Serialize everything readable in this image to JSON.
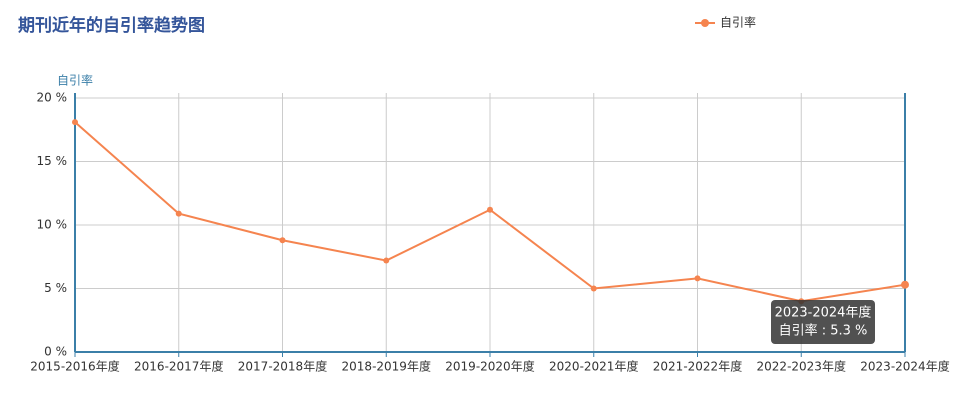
{
  "chart_data": {
    "type": "line",
    "title": "期刊近年的自引率趋势图",
    "y_axis_label": "自引率",
    "categories": [
      "2015-2016年度",
      "2016-2017年度",
      "2017-2018年度",
      "2018-2019年度",
      "2019-2020年度",
      "2020-2021年度",
      "2021-2022年度",
      "2022-2023年度",
      "2023-2024年度"
    ],
    "series": [
      {
        "name": "自引率",
        "color": "#f5844f",
        "values": [
          18.1,
          10.9,
          8.8,
          7.2,
          11.2,
          5.0,
          5.8,
          4.0,
          5.3
        ]
      }
    ],
    "ylim": [
      0,
      20
    ],
    "yticks": [
      {
        "value": 0,
        "label": "0 %"
      },
      {
        "value": 5,
        "label": "5 %"
      },
      {
        "value": 10,
        "label": "10 %"
      },
      {
        "value": 15,
        "label": "15 %"
      },
      {
        "value": 20,
        "label": "20 %"
      }
    ],
    "grid": true,
    "legend": "top-right",
    "tooltip": {
      "title": "2023-2024年度",
      "label": "自引率 : 5.3 %"
    }
  }
}
